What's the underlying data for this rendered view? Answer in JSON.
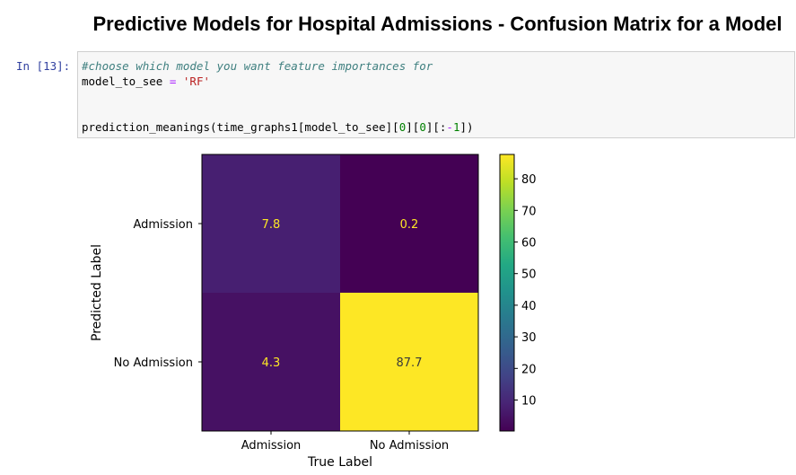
{
  "page": {
    "title": "Predictive Models for Hospital Admissions - Confusion Matrix for a Model"
  },
  "cell": {
    "prompt": "In [13]:",
    "lines": {
      "comment": "#choose which model you want feature importances for",
      "assign_var": "model_to_see ",
      "assign_op": "=",
      "assign_str": " 'RF'",
      "call_a": "prediction_meanings(time_graphs1[model_to_see][",
      "call_n1": "0",
      "call_b": "][",
      "call_n2": "0",
      "call_c": "][:",
      "call_op": "-",
      "call_n3": "1",
      "call_d": "])"
    }
  },
  "chart_data": {
    "type": "heatmap",
    "colormap": "viridis",
    "xlabel": "True Label",
    "ylabel": "Predicted Label",
    "x_categories": [
      "Admission",
      "No Admission"
    ],
    "y_categories": [
      "Admission",
      "No Admission"
    ],
    "values": [
      [
        7.8,
        0.2
      ],
      [
        4.3,
        87.7
      ]
    ],
    "colorbar": {
      "min": 0.2,
      "max": 87.7,
      "ticks": [
        10,
        20,
        30,
        40,
        50,
        60,
        70,
        80
      ]
    }
  }
}
